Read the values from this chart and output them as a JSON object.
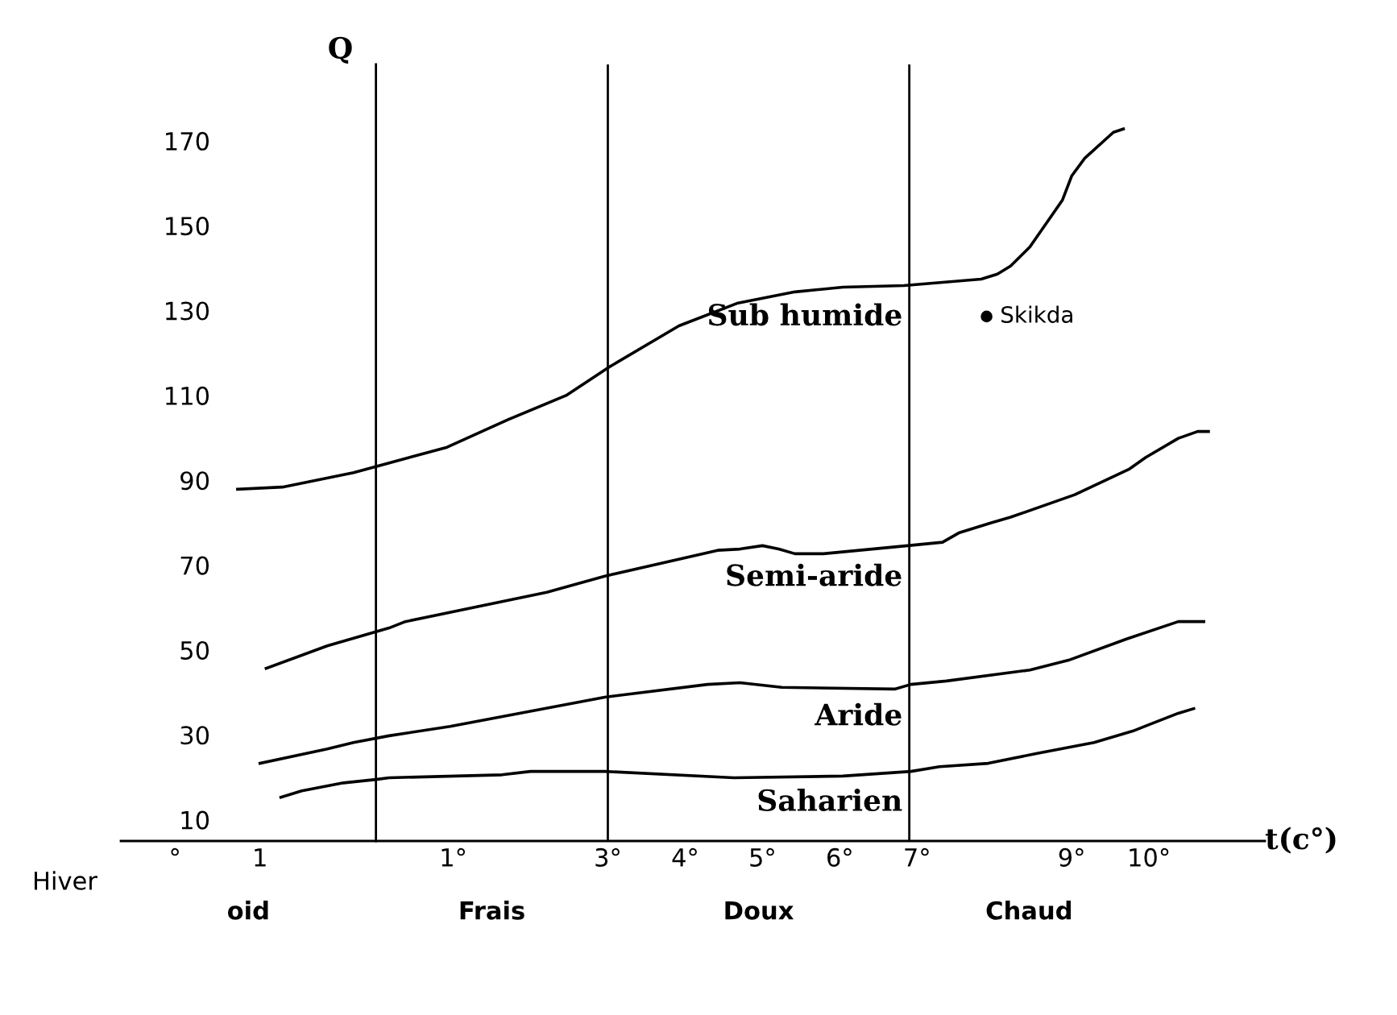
{
  "chart_data": {
    "type": "line",
    "xlabel": "t(c°)",
    "ylabel": "Q",
    "xlim": [
      -3.3,
      11.5
    ],
    "ylim": [
      5,
      188
    ],
    "xticks": [
      {
        "value": -2.6,
        "label": "°"
      },
      {
        "value": -1.5,
        "label": "1"
      },
      {
        "value": 1,
        "label": "1°"
      },
      {
        "value": 3,
        "label": "3°"
      },
      {
        "value": 4,
        "label": "4°"
      },
      {
        "value": 5,
        "label": "5°"
      },
      {
        "value": 6,
        "label": "6°"
      },
      {
        "value": 7,
        "label": "7°"
      },
      {
        "value": 9,
        "label": "9°"
      },
      {
        "value": 10,
        "label": "10°"
      }
    ],
    "yticks": [
      10,
      30,
      50,
      70,
      90,
      110,
      130,
      150,
      170
    ],
    "grid": false,
    "legend": false,
    "line_style": "solid",
    "marker": "none",
    "series": [
      {
        "name": "Sub humide",
        "color": "#000000",
        "x": [
          -1.79,
          -1.21,
          -0.29,
          0.17,
          0.92,
          1.71,
          2.46,
          3.0,
          3.92,
          4.67,
          5.42,
          6.04,
          6.83,
          7.83,
          8.04,
          8.21,
          8.46,
          8.88,
          9.0,
          9.17,
          9.54,
          9.67
        ],
        "values": [
          87.9,
          88.4,
          91.8,
          94.1,
          97.8,
          104.3,
          110.0,
          116.5,
          126.4,
          131.7,
          134.4,
          135.5,
          135.9,
          137.4,
          138.6,
          140.5,
          145.0,
          156.0,
          161.7,
          165.9,
          172.0,
          172.8
        ]
      },
      {
        "name": "Semi-aride",
        "color": "#000000",
        "x": [
          -1.42,
          -0.63,
          0.17,
          0.38,
          2.21,
          2.96,
          4.42,
          4.71,
          5.0,
          5.21,
          5.42,
          5.79,
          6.88,
          7.33,
          7.54,
          7.96,
          8.21,
          9.04,
          9.75,
          9.96,
          10.38,
          10.63,
          10.77
        ],
        "values": [
          45.7,
          51.0,
          55.2,
          56.7,
          63.6,
          67.4,
          73.5,
          73.8,
          74.6,
          73.8,
          72.7,
          72.7,
          74.6,
          75.4,
          77.6,
          80.0,
          81.3,
          86.6,
          92.7,
          95.4,
          99.9,
          101.5,
          101.5
        ]
      },
      {
        "name": "Aride",
        "color": "#000000",
        "x": [
          -1.5,
          -0.63,
          -0.29,
          0.17,
          0.96,
          2.96,
          4.29,
          4.71,
          5.25,
          6.71,
          6.92,
          7.38,
          8.46,
          8.96,
          9.71,
          10.38,
          10.71
        ],
        "values": [
          23.3,
          26.7,
          28.2,
          29.8,
          32.0,
          38.9,
          41.9,
          42.3,
          41.2,
          40.8,
          41.9,
          42.7,
          45.3,
          47.6,
          52.6,
          56.7,
          56.7
        ]
      },
      {
        "name": "Saharien",
        "color": "#000000",
        "x": [
          -1.23,
          -0.96,
          -0.42,
          0.0,
          0.17,
          1.63,
          2.0,
          2.96,
          4.63,
          6.04,
          6.92,
          7.29,
          7.92,
          8.54,
          9.29,
          9.79,
          10.0,
          10.38,
          10.58
        ],
        "values": [
          15.3,
          16.8,
          18.7,
          19.5,
          19.9,
          20.6,
          21.4,
          21.4,
          19.9,
          20.3,
          21.4,
          22.5,
          23.3,
          25.6,
          28.2,
          30.9,
          32.4,
          35.1,
          36.2
        ]
      },
      {
        "type": "scatter",
        "marker": "circle",
        "name": "Skikda",
        "color": "#000000",
        "x": [
          7.9
        ],
        "values": [
          128.6
        ]
      }
    ],
    "ref_lines": [
      {
        "axis": "x",
        "value": 3,
        "color": "#000000"
      },
      {
        "axis": "x",
        "value": 6.9,
        "color": "#000000"
      }
    ],
    "annotations": [
      "Hiver",
      "oid",
      "Frais",
      "Doux",
      "Chaud"
    ]
  }
}
